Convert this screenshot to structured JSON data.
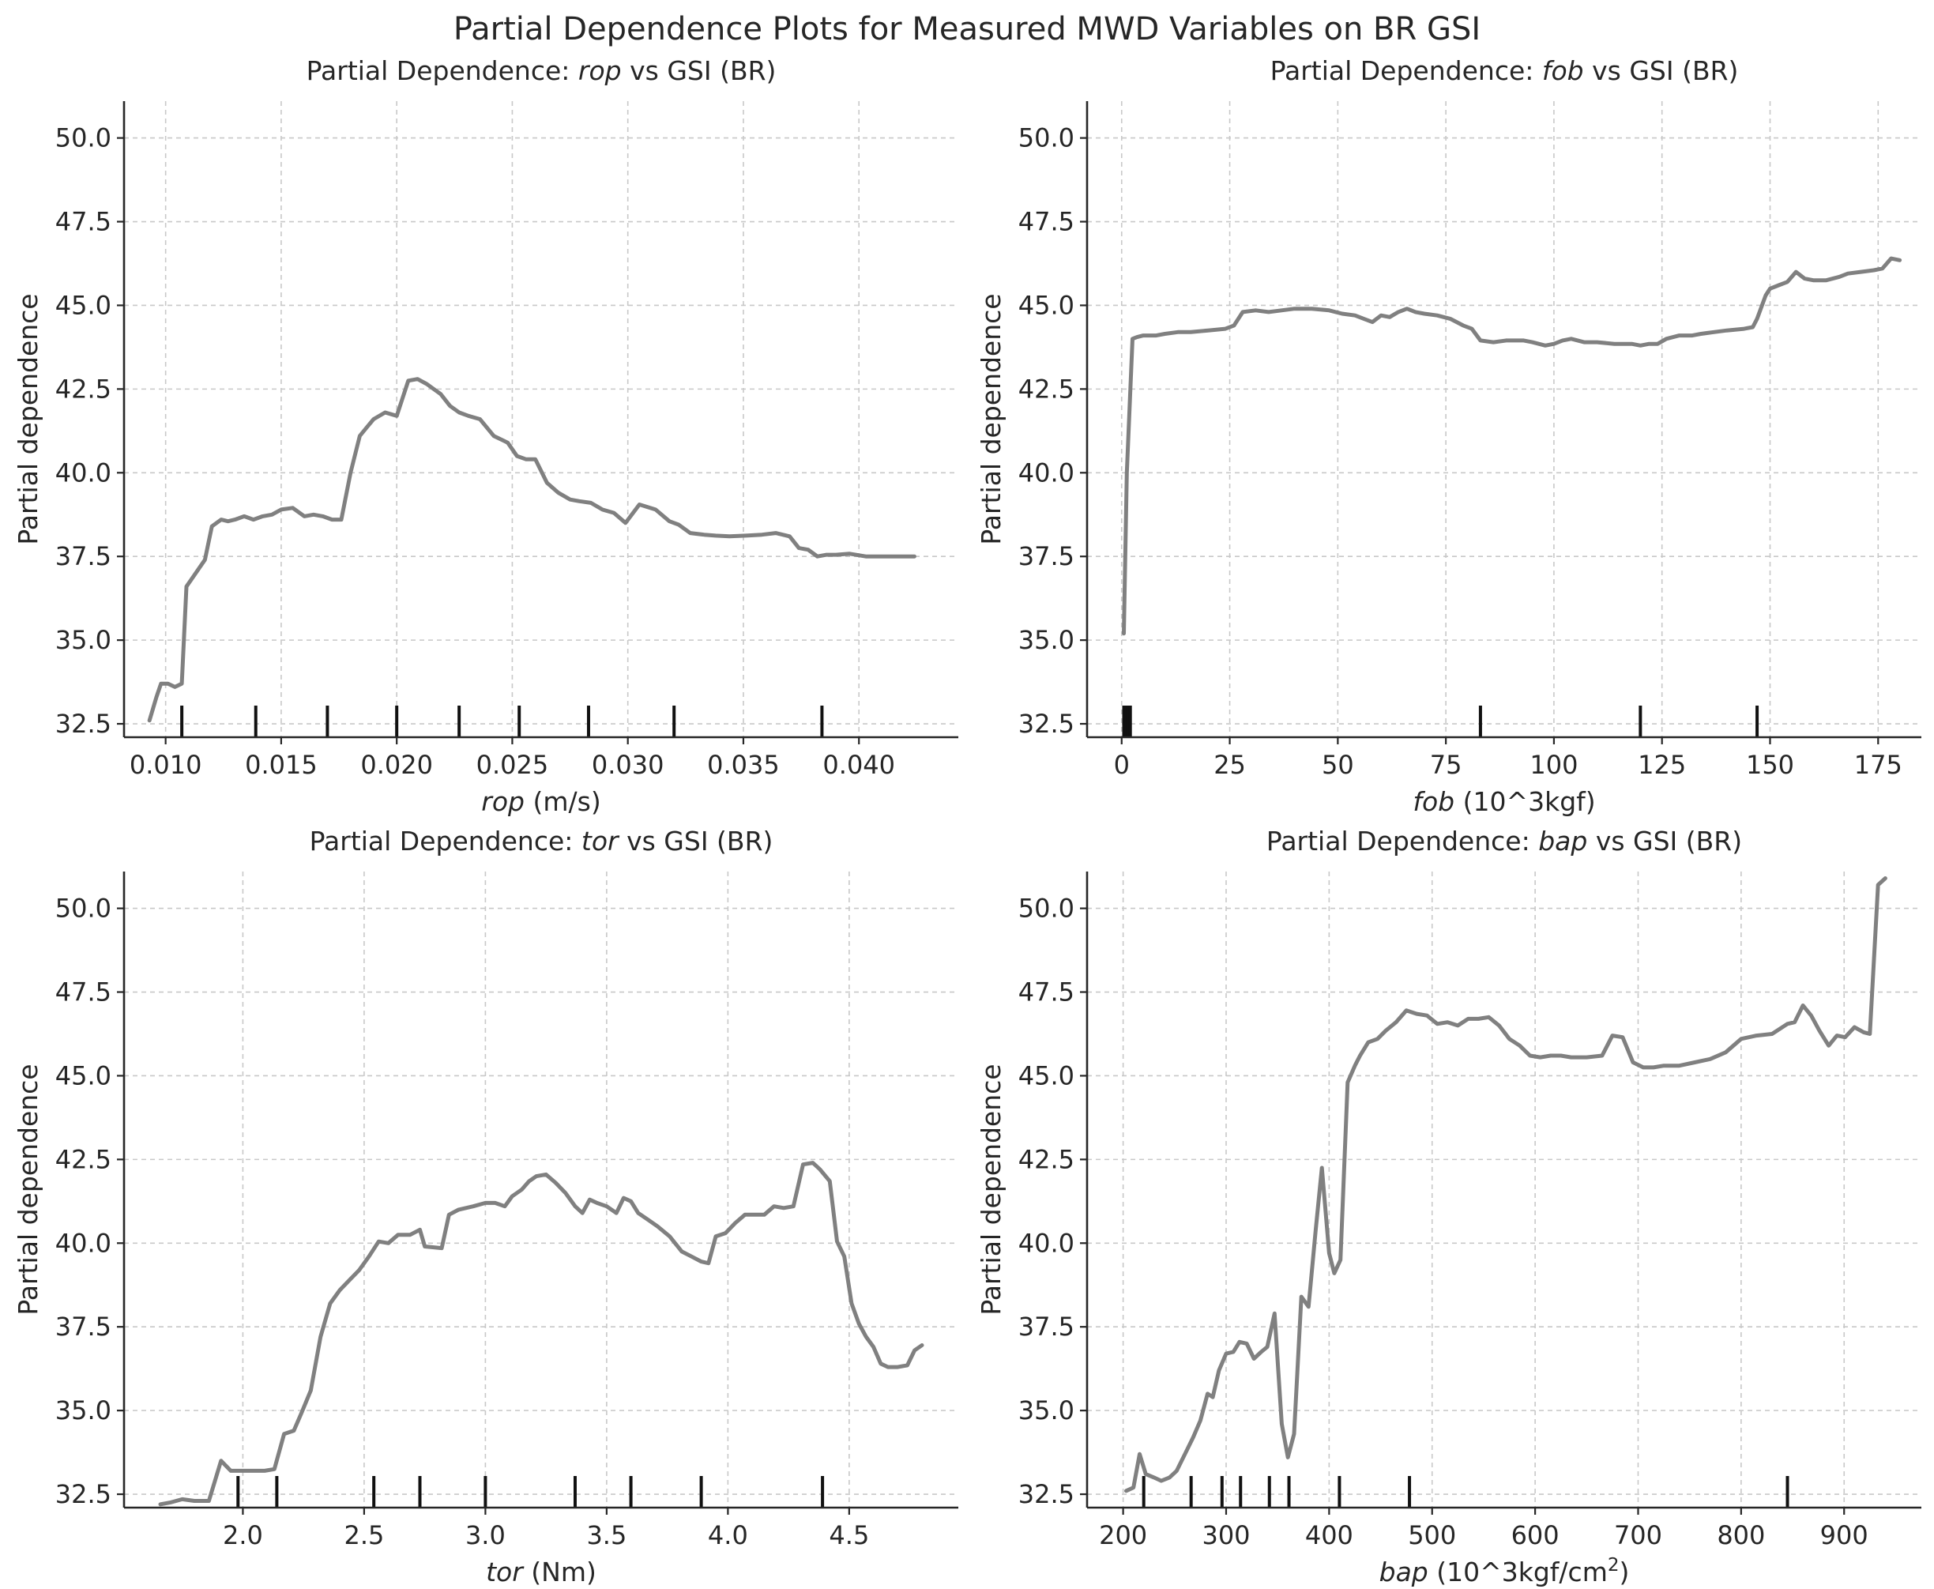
{
  "title": "Partial Dependence Plots for Measured MWD Variables on BR GSI",
  "colors": {
    "line": "#808080",
    "rug": "#111111",
    "grid": "#c8c8c8",
    "axis": "#262626"
  },
  "chart_data": [
    {
      "type": "line",
      "title": {
        "prefix": "Partial Dependence: ",
        "var": "rop",
        "suffix": " vs GSI (BR)"
      },
      "xlabel": {
        "var": "rop",
        "rest": " (m/s)"
      },
      "ylabel": "Partial dependence",
      "xlim": [
        0.0082,
        0.0443
      ],
      "ylim": [
        32.1,
        51.1
      ],
      "xticks": [
        0.01,
        0.015,
        0.02,
        0.025,
        0.03,
        0.035,
        0.04
      ],
      "xtick_labels": [
        "0.010",
        "0.015",
        "0.020",
        "0.025",
        "0.030",
        "0.035",
        "0.040"
      ],
      "yticks": [
        32.5,
        35.0,
        37.5,
        40.0,
        42.5,
        45.0,
        47.5,
        50.0
      ],
      "ytick_labels": [
        "32.5",
        "35.0",
        "37.5",
        "40.0",
        "42.5",
        "45.0",
        "47.5",
        "50.0"
      ],
      "grid": true,
      "deciles": [
        0.0107,
        0.0139,
        0.017,
        0.02,
        0.0227,
        0.0253,
        0.0283,
        0.032,
        0.0384
      ],
      "x": [
        0.0093,
        0.0096,
        0.0098,
        0.0101,
        0.0104,
        0.0107,
        0.0109,
        0.0111,
        0.0114,
        0.0117,
        0.012,
        0.0124,
        0.0127,
        0.013,
        0.0134,
        0.0138,
        0.0142,
        0.0146,
        0.015,
        0.0155,
        0.016,
        0.0164,
        0.0168,
        0.0172,
        0.0176,
        0.018,
        0.0184,
        0.0187,
        0.019,
        0.0195,
        0.02,
        0.0205,
        0.0209,
        0.0213,
        0.0216,
        0.0219,
        0.0223,
        0.0227,
        0.0231,
        0.0236,
        0.0242,
        0.0248,
        0.0252,
        0.0256,
        0.026,
        0.0265,
        0.027,
        0.0275,
        0.0279,
        0.0284,
        0.0289,
        0.0294,
        0.0299,
        0.0305,
        0.0312,
        0.0318,
        0.0322,
        0.0327,
        0.0333,
        0.0338,
        0.0344,
        0.0351,
        0.0358,
        0.0364,
        0.037,
        0.0374,
        0.0378,
        0.0382,
        0.0386,
        0.039,
        0.0396,
        0.0403,
        0.041,
        0.0417,
        0.0424
      ],
      "y": [
        32.6,
        33.3,
        33.7,
        33.7,
        33.6,
        33.7,
        36.6,
        36.8,
        37.1,
        37.4,
        38.4,
        38.6,
        38.55,
        38.6,
        38.7,
        38.6,
        38.7,
        38.75,
        38.9,
        38.95,
        38.7,
        38.75,
        38.7,
        38.6,
        38.6,
        40.0,
        41.1,
        41.35,
        41.6,
        41.8,
        41.7,
        42.75,
        42.8,
        42.65,
        42.5,
        42.35,
        42.0,
        41.8,
        41.7,
        41.6,
        41.1,
        40.9,
        40.5,
        40.4,
        40.4,
        39.7,
        39.4,
        39.2,
        39.15,
        39.1,
        38.9,
        38.8,
        38.5,
        39.05,
        38.9,
        38.55,
        38.45,
        38.2,
        38.15,
        38.12,
        38.1,
        38.12,
        38.15,
        38.2,
        38.1,
        37.75,
        37.7,
        37.5,
        37.55,
        37.55,
        37.58,
        37.5,
        37.5,
        37.5,
        37.5
      ]
    },
    {
      "type": "line",
      "title": {
        "prefix": "Partial Dependence: ",
        "var": "fob",
        "suffix": " vs GSI (BR)"
      },
      "xlabel": {
        "var": "fob",
        "rest": " (10^3kgf)"
      },
      "ylabel": "Partial dependence",
      "xlim": [
        -8,
        185
      ],
      "ylim": [
        32.1,
        51.1
      ],
      "xticks": [
        0,
        25,
        50,
        75,
        100,
        125,
        150,
        175
      ],
      "xtick_labels": [
        "0",
        "25",
        "50",
        "75",
        "100",
        "125",
        "150",
        "175"
      ],
      "yticks": [
        32.5,
        35.0,
        37.5,
        40.0,
        42.5,
        45.0,
        47.5,
        50.0
      ],
      "ytick_labels": [
        "32.5",
        "35.0",
        "37.5",
        "40.0",
        "42.5",
        "45.0",
        "47.5",
        "50.0"
      ],
      "grid": true,
      "deciles": [
        0.5,
        1.0,
        1.5,
        2.0,
        83,
        120,
        147
      ],
      "x": [
        0.5,
        1.2,
        2.5,
        3.5,
        5,
        8,
        10,
        13,
        16,
        20,
        24,
        26,
        28,
        31,
        34,
        37,
        40,
        44,
        48,
        51,
        54,
        56,
        58,
        60,
        62,
        64,
        66,
        68,
        70,
        73,
        76,
        79,
        81,
        83,
        86,
        89,
        93,
        95,
        98,
        100,
        102,
        104,
        107,
        110,
        114,
        118,
        120,
        122,
        124,
        126,
        129,
        132,
        134,
        137,
        140,
        144,
        146,
        147,
        149,
        150,
        152,
        154,
        156,
        158,
        160,
        163,
        166,
        168,
        171,
        174,
        176,
        178,
        180
      ],
      "y": [
        35.2,
        40.0,
        44.0,
        44.05,
        44.1,
        44.1,
        44.15,
        44.2,
        44.2,
        44.25,
        44.3,
        44.4,
        44.8,
        44.85,
        44.8,
        44.85,
        44.9,
        44.9,
        44.85,
        44.75,
        44.7,
        44.6,
        44.5,
        44.7,
        44.65,
        44.8,
        44.9,
        44.8,
        44.75,
        44.7,
        44.6,
        44.4,
        44.3,
        43.95,
        43.9,
        43.95,
        43.95,
        43.9,
        43.8,
        43.85,
        43.95,
        44.0,
        43.9,
        43.9,
        43.85,
        43.85,
        43.8,
        43.85,
        43.85,
        44.0,
        44.1,
        44.1,
        44.15,
        44.2,
        44.25,
        44.3,
        44.35,
        44.6,
        45.3,
        45.5,
        45.6,
        45.7,
        46.0,
        45.8,
        45.75,
        45.75,
        45.85,
        45.95,
        46.0,
        46.05,
        46.1,
        46.4,
        46.35
      ]
    },
    {
      "type": "line",
      "title": {
        "prefix": "Partial Dependence: ",
        "var": "tor",
        "suffix": " vs GSI (BR)"
      },
      "xlabel": {
        "var": "tor",
        "rest": " (Nm)"
      },
      "ylabel": "Partial dependence",
      "xlim": [
        1.51,
        4.95
      ],
      "ylim": [
        32.1,
        51.1
      ],
      "xticks": [
        2.0,
        2.5,
        3.0,
        3.5,
        4.0,
        4.5
      ],
      "xtick_labels": [
        "2.0",
        "2.5",
        "3.0",
        "3.5",
        "4.0",
        "4.5"
      ],
      "yticks": [
        32.5,
        35.0,
        37.5,
        40.0,
        42.5,
        45.0,
        47.5,
        50.0
      ],
      "ytick_labels": [
        "32.5",
        "35.0",
        "37.5",
        "40.0",
        "42.5",
        "45.0",
        "47.5",
        "50.0"
      ],
      "grid": true,
      "deciles": [
        1.98,
        2.14,
        2.54,
        2.73,
        3.0,
        3.37,
        3.6,
        3.89,
        4.39
      ],
      "x": [
        1.66,
        1.7,
        1.75,
        1.8,
        1.86,
        1.91,
        1.95,
        1.99,
        2.04,
        2.09,
        2.13,
        2.17,
        2.21,
        2.24,
        2.28,
        2.32,
        2.36,
        2.4,
        2.44,
        2.48,
        2.52,
        2.56,
        2.6,
        2.64,
        2.69,
        2.73,
        2.75,
        2.82,
        2.85,
        2.89,
        2.95,
        3.0,
        3.04,
        3.08,
        3.11,
        3.15,
        3.18,
        3.21,
        3.25,
        3.29,
        3.33,
        3.37,
        3.4,
        3.43,
        3.46,
        3.5,
        3.54,
        3.57,
        3.6,
        3.63,
        3.67,
        3.71,
        3.76,
        3.81,
        3.85,
        3.89,
        3.92,
        3.95,
        3.99,
        4.03,
        4.07,
        4.11,
        4.15,
        4.19,
        4.23,
        4.27,
        4.31,
        4.35,
        4.38,
        4.42,
        4.45,
        4.48,
        4.51,
        4.54,
        4.57,
        4.6,
        4.63,
        4.66,
        4.7,
        4.74,
        4.77,
        4.8
      ],
      "y": [
        32.2,
        32.25,
        32.35,
        32.3,
        32.3,
        33.5,
        33.2,
        33.2,
        33.2,
        33.2,
        33.25,
        34.3,
        34.4,
        34.9,
        35.6,
        37.2,
        38.2,
        38.6,
        38.9,
        39.2,
        39.6,
        40.05,
        40.0,
        40.25,
        40.25,
        40.4,
        39.9,
        39.85,
        40.85,
        41.0,
        41.1,
        41.2,
        41.2,
        41.1,
        41.4,
        41.6,
        41.85,
        42.0,
        42.05,
        41.8,
        41.5,
        41.1,
        40.9,
        41.3,
        41.2,
        41.1,
        40.9,
        41.35,
        41.25,
        40.9,
        40.7,
        40.5,
        40.2,
        39.75,
        39.6,
        39.45,
        39.4,
        40.2,
        40.3,
        40.6,
        40.85,
        40.85,
        40.85,
        41.1,
        41.05,
        41.1,
        42.35,
        42.4,
        42.2,
        41.85,
        40.05,
        39.6,
        38.2,
        37.6,
        37.2,
        36.9,
        36.4,
        36.3,
        36.3,
        36.35,
        36.8,
        36.95
      ]
    },
    {
      "type": "line",
      "title": {
        "prefix": "Partial Dependence: ",
        "var": "bap",
        "suffix": " vs GSI (BR)"
      },
      "xlabel": {
        "var": "bap",
        "rest": " (10^3kgf/cm",
        "sup": "2",
        "end": ")"
      },
      "ylabel": "Partial dependence",
      "xlim": [
        165,
        975
      ],
      "ylim": [
        32.1,
        51.1
      ],
      "xticks": [
        200,
        300,
        400,
        500,
        600,
        700,
        800,
        900
      ],
      "xtick_labels": [
        "200",
        "300",
        "400",
        "500",
        "600",
        "700",
        "800",
        "900"
      ],
      "yticks": [
        32.5,
        35.0,
        37.5,
        40.0,
        42.5,
        45.0,
        47.5,
        50.0
      ],
      "ytick_labels": [
        "32.5",
        "35.0",
        "37.5",
        "40.0",
        "42.5",
        "45.0",
        "47.5",
        "50.0"
      ],
      "grid": true,
      "deciles": [
        220,
        266,
        296,
        314,
        342,
        361,
        410,
        478,
        845
      ],
      "x": [
        203,
        210,
        216,
        222,
        230,
        237,
        245,
        252,
        260,
        268,
        275,
        282,
        287,
        293,
        300,
        307,
        313,
        320,
        327,
        334,
        340,
        347,
        354,
        360,
        366,
        373,
        380,
        387,
        393,
        400,
        405,
        411,
        418,
        425,
        430,
        438,
        447,
        455,
        465,
        475,
        485,
        495,
        505,
        515,
        525,
        535,
        545,
        555,
        565,
        575,
        585,
        595,
        605,
        615,
        625,
        635,
        650,
        665,
        675,
        685,
        695,
        705,
        715,
        725,
        740,
        755,
        770,
        785,
        800,
        815,
        830,
        845,
        852,
        860,
        868,
        876,
        885,
        893,
        901,
        910,
        919,
        925,
        933,
        940
      ],
      "y": [
        32.6,
        32.7,
        33.7,
        33.1,
        33.0,
        32.9,
        33.0,
        33.2,
        33.7,
        34.2,
        34.7,
        35.5,
        35.4,
        36.2,
        36.7,
        36.75,
        37.05,
        37.0,
        36.55,
        36.75,
        36.9,
        37.9,
        34.6,
        33.6,
        34.3,
        38.4,
        38.1,
        40.4,
        42.25,
        39.7,
        39.1,
        39.5,
        44.8,
        45.3,
        45.6,
        46.0,
        46.1,
        46.35,
        46.6,
        46.95,
        46.85,
        46.8,
        46.55,
        46.6,
        46.5,
        46.7,
        46.7,
        46.75,
        46.5,
        46.1,
        45.9,
        45.6,
        45.55,
        45.6,
        45.6,
        45.55,
        45.55,
        45.6,
        46.2,
        46.15,
        45.4,
        45.25,
        45.25,
        45.3,
        45.3,
        45.4,
        45.5,
        45.7,
        46.1,
        46.2,
        46.25,
        46.55,
        46.6,
        47.1,
        46.8,
        46.35,
        45.9,
        46.2,
        46.15,
        46.45,
        46.3,
        46.25,
        50.7,
        50.9
      ]
    }
  ]
}
